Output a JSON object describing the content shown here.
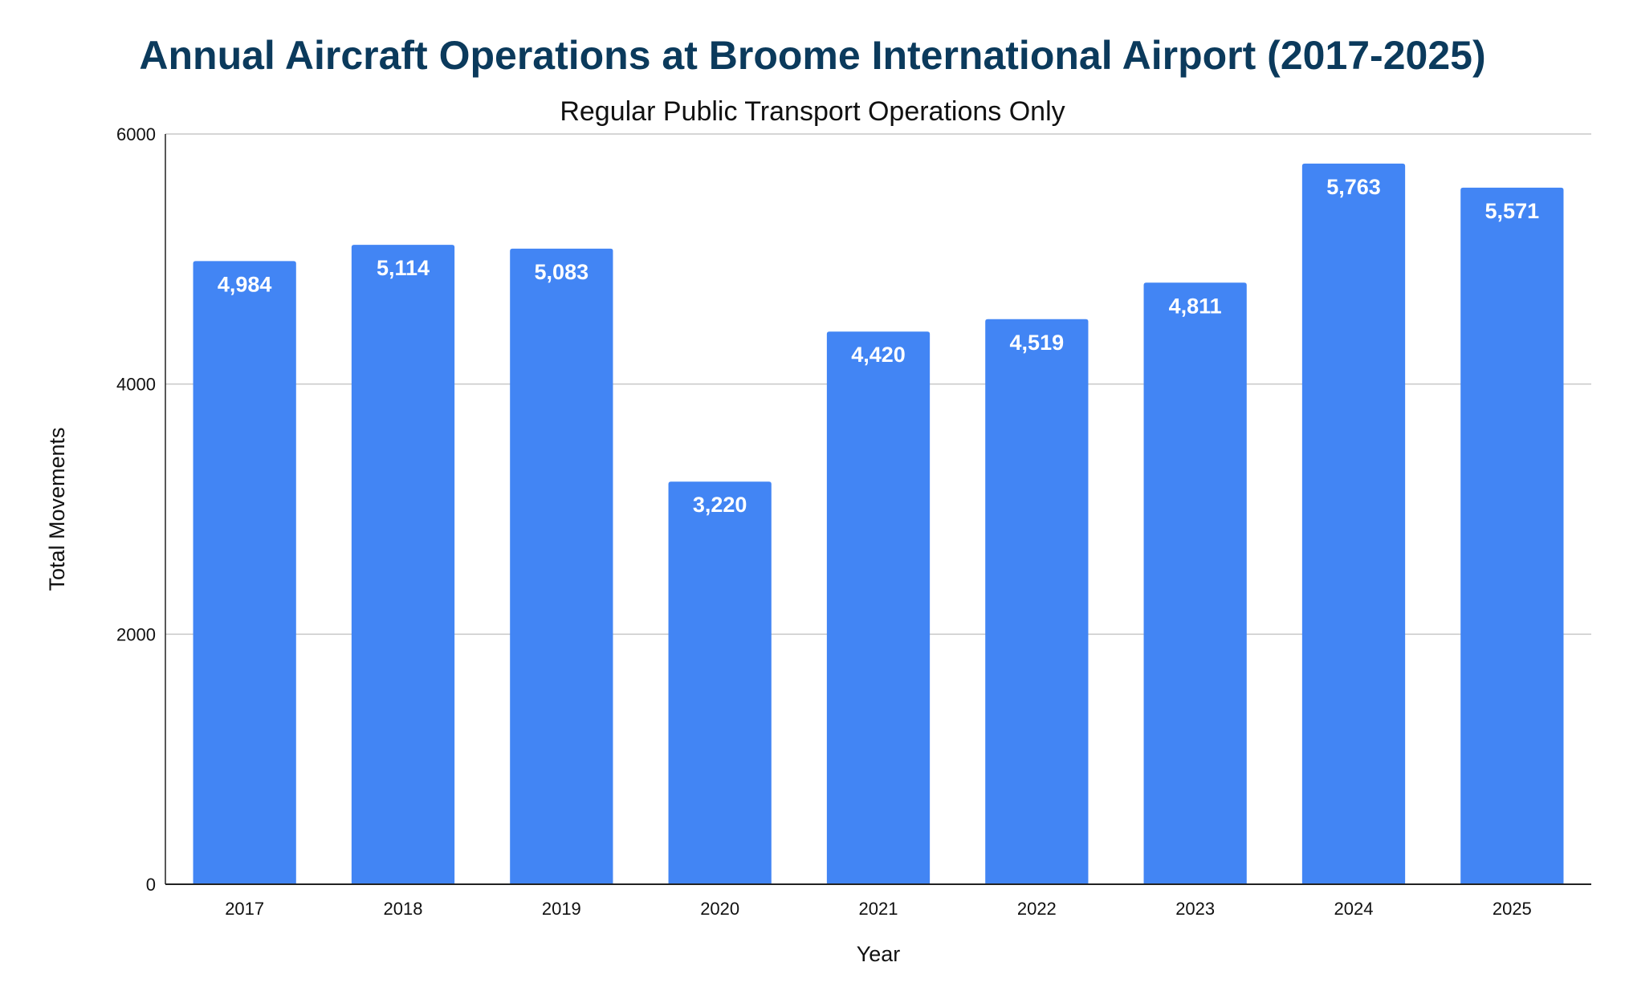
{
  "chart_data": {
    "type": "bar",
    "title": "Annual Aircraft Operations at Broome International Airport (2017-2025)",
    "subtitle": "Regular Public Transport Operations Only",
    "xlabel": "Year",
    "ylabel": "Total Movements",
    "categories": [
      "2017",
      "2018",
      "2019",
      "2020",
      "2021",
      "2022",
      "2023",
      "2024",
      "2025"
    ],
    "values": [
      4984,
      5114,
      5083,
      3220,
      4420,
      4519,
      4811,
      5763,
      5571
    ],
    "value_labels": [
      "4,984",
      "5,114",
      "5,083",
      "3,220",
      "4,420",
      "4,519",
      "4,811",
      "5,763",
      "5,571"
    ],
    "ylim": [
      0,
      6000
    ],
    "yticks": [
      0,
      2000,
      4000,
      6000
    ],
    "grid": true,
    "legend": "none",
    "bar_color": "#4285f4",
    "label_color": "#ffffff",
    "title_color": "#0b3a5c"
  }
}
